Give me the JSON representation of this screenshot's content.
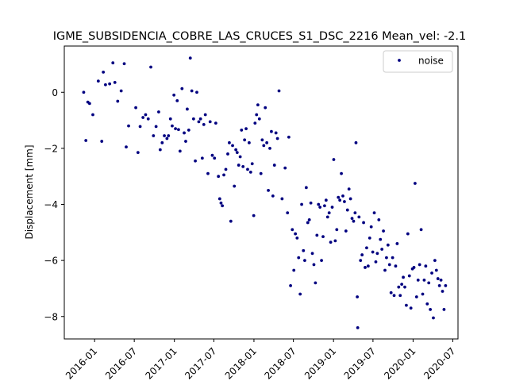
{
  "chart_data": {
    "type": "scatter",
    "title": "IGME_SUBSIDENCIA_COBRE_LAS_CRUCES_S1_DSC_2216     Mean_vel: -2.1",
    "xlabel": "",
    "ylabel": "Displacement [mm]",
    "xlim": [
      "2015-08-15",
      "2020-07-25"
    ],
    "ylim": [
      -8.8,
      1.65
    ],
    "x_ticks": [
      "2016-01",
      "2016-07",
      "2017-01",
      "2017-07",
      "2018-01",
      "2018-07",
      "2019-01",
      "2019-07",
      "2020-01",
      "2020-07"
    ],
    "y_ticks": [
      0,
      -2,
      -4,
      -6,
      -8
    ],
    "y_tick_labels": [
      "0",
      "−2",
      "−4",
      "−6",
      "−8"
    ],
    "legend": {
      "placement": "top-right",
      "entries": [
        "noise"
      ]
    },
    "grid": false,
    "marker_color": "#000080",
    "series": [
      {
        "name": "noise",
        "points": [
          [
            "2015-11-12",
            0.0
          ],
          [
            "2015-11-22",
            -1.72
          ],
          [
            "2015-12-01",
            -0.35
          ],
          [
            "2015-12-09",
            -0.4
          ],
          [
            "2015-12-24",
            -0.8
          ],
          [
            "2016-01-18",
            0.4
          ],
          [
            "2016-02-03",
            -1.75
          ],
          [
            "2016-02-10",
            0.72
          ],
          [
            "2016-02-20",
            0.27
          ],
          [
            "2016-03-10",
            0.3
          ],
          [
            "2016-03-25",
            1.05
          ],
          [
            "2016-04-03",
            0.35
          ],
          [
            "2016-04-16",
            -0.32
          ],
          [
            "2016-05-02",
            0.05
          ],
          [
            "2016-05-16",
            1.02
          ],
          [
            "2016-05-25",
            -1.95
          ],
          [
            "2016-06-05",
            -1.2
          ],
          [
            "2016-07-08",
            -0.55
          ],
          [
            "2016-07-18",
            -2.15
          ],
          [
            "2016-07-28",
            -1.22
          ],
          [
            "2016-08-10",
            -0.9
          ],
          [
            "2016-08-22",
            -0.8
          ],
          [
            "2016-09-03",
            -0.95
          ],
          [
            "2016-09-15",
            0.9
          ],
          [
            "2016-09-27",
            -1.55
          ],
          [
            "2016-10-09",
            -1.22
          ],
          [
            "2016-10-21",
            -0.7
          ],
          [
            "2016-10-28",
            -2.05
          ],
          [
            "2016-11-06",
            -1.8
          ],
          [
            "2016-11-16",
            -1.55
          ],
          [
            "2016-11-28",
            -1.65
          ],
          [
            "2016-12-05",
            -1.55
          ],
          [
            "2016-12-14",
            -0.95
          ],
          [
            "2016-12-22",
            -1.2
          ],
          [
            "2016-12-30",
            -0.1
          ],
          [
            "2017-01-06",
            -1.3
          ],
          [
            "2017-01-14",
            -0.3
          ],
          [
            "2017-01-20",
            -1.33
          ],
          [
            "2017-01-27",
            -2.1
          ],
          [
            "2017-02-05",
            0.13
          ],
          [
            "2017-02-15",
            -1.45
          ],
          [
            "2017-02-22",
            -1.75
          ],
          [
            "2017-03-01",
            -0.6
          ],
          [
            "2017-03-08",
            -1.35
          ],
          [
            "2017-03-15",
            1.22
          ],
          [
            "2017-03-22",
            0.05
          ],
          [
            "2017-03-30",
            -0.95
          ],
          [
            "2017-04-07",
            -2.45
          ],
          [
            "2017-04-14",
            0.0
          ],
          [
            "2017-04-23",
            -1.05
          ],
          [
            "2017-05-01",
            -0.95
          ],
          [
            "2017-05-09",
            -2.35
          ],
          [
            "2017-05-16",
            -1.15
          ],
          [
            "2017-05-23",
            -0.8
          ],
          [
            "2017-06-04",
            -2.9
          ],
          [
            "2017-06-14",
            -1.05
          ],
          [
            "2017-06-24",
            -2.25
          ],
          [
            "2017-07-04",
            -2.35
          ],
          [
            "2017-07-10",
            -1.1
          ],
          [
            "2017-07-22",
            -3.0
          ],
          [
            "2017-07-28",
            -3.8
          ],
          [
            "2017-08-03",
            -3.95
          ],
          [
            "2017-08-09",
            -4.05
          ],
          [
            "2017-08-16",
            -2.95
          ],
          [
            "2017-08-25",
            -2.75
          ],
          [
            "2017-09-03",
            -2.2
          ],
          [
            "2017-09-10",
            -1.8
          ],
          [
            "2017-09-17",
            -4.6
          ],
          [
            "2017-09-25",
            -1.9
          ],
          [
            "2017-10-03",
            -3.35
          ],
          [
            "2017-10-10",
            -2.05
          ],
          [
            "2017-10-16",
            -2.15
          ],
          [
            "2017-10-23",
            -2.6
          ],
          [
            "2017-10-30",
            -2.3
          ],
          [
            "2017-11-05",
            -1.35
          ],
          [
            "2017-11-12",
            -2.65
          ],
          [
            "2017-11-19",
            -1.7
          ],
          [
            "2017-11-26",
            -1.3
          ],
          [
            "2017-12-03",
            -2.75
          ],
          [
            "2017-12-10",
            -1.8
          ],
          [
            "2017-12-17",
            -2.85
          ],
          [
            "2017-12-24",
            -2.55
          ],
          [
            "2017-12-31",
            -4.4
          ],
          [
            "2018-01-06",
            -1.1
          ],
          [
            "2018-01-13",
            -0.8
          ],
          [
            "2018-01-19",
            -0.45
          ],
          [
            "2018-01-26",
            -0.95
          ],
          [
            "2018-02-02",
            -2.9
          ],
          [
            "2018-02-08",
            -1.7
          ],
          [
            "2018-02-15",
            -1.9
          ],
          [
            "2018-02-22",
            -0.55
          ],
          [
            "2018-03-01",
            -1.8
          ],
          [
            "2018-03-08",
            -3.5
          ],
          [
            "2018-03-15",
            -2.0
          ],
          [
            "2018-03-22",
            -1.4
          ],
          [
            "2018-03-29",
            -3.7
          ],
          [
            "2018-04-05",
            -2.6
          ],
          [
            "2018-04-12",
            -1.45
          ],
          [
            "2018-04-19",
            -1.65
          ],
          [
            "2018-04-26",
            0.05
          ],
          [
            "2018-05-10",
            -3.8
          ],
          [
            "2018-05-24",
            -2.7
          ],
          [
            "2018-06-04",
            -4.3
          ],
          [
            "2018-06-10",
            -1.6
          ],
          [
            "2018-06-18",
            -6.9
          ],
          [
            "2018-06-26",
            -4.9
          ],
          [
            "2018-07-03",
            -6.35
          ],
          [
            "2018-07-10",
            -5.05
          ],
          [
            "2018-07-18",
            -5.2
          ],
          [
            "2018-07-25",
            -5.9
          ],
          [
            "2018-08-01",
            -7.2
          ],
          [
            "2018-08-08",
            -4.0
          ],
          [
            "2018-08-16",
            -5.65
          ],
          [
            "2018-08-22",
            -6.0
          ],
          [
            "2018-08-29",
            -3.4
          ],
          [
            "2018-09-05",
            -4.65
          ],
          [
            "2018-09-12",
            -4.55
          ],
          [
            "2018-09-19",
            -3.95
          ],
          [
            "2018-09-26",
            -5.75
          ],
          [
            "2018-10-03",
            -6.15
          ],
          [
            "2018-10-10",
            -6.8
          ],
          [
            "2018-10-17",
            -5.1
          ],
          [
            "2018-10-24",
            -4.0
          ],
          [
            "2018-10-31",
            -4.1
          ],
          [
            "2018-11-07",
            -6.0
          ],
          [
            "2018-11-14",
            -5.15
          ],
          [
            "2018-11-21",
            -4.05
          ],
          [
            "2018-11-28",
            -3.85
          ],
          [
            "2018-12-05",
            -4.45
          ],
          [
            "2018-12-12",
            -4.3
          ],
          [
            "2018-12-19",
            -5.35
          ],
          [
            "2018-12-26",
            -4.1
          ],
          [
            "2019-01-02",
            -2.4
          ],
          [
            "2019-01-09",
            -5.3
          ],
          [
            "2019-01-16",
            -4.9
          ],
          [
            "2019-01-23",
            -3.75
          ],
          [
            "2019-01-30",
            -3.85
          ],
          [
            "2019-02-06",
            -2.9
          ],
          [
            "2019-02-13",
            -3.7
          ],
          [
            "2019-02-20",
            -3.9
          ],
          [
            "2019-02-27",
            -4.95
          ],
          [
            "2019-03-06",
            -4.2
          ],
          [
            "2019-03-13",
            -3.45
          ],
          [
            "2019-03-20",
            -3.8
          ],
          [
            "2019-03-27",
            -4.5
          ],
          [
            "2019-04-03",
            -4.6
          ],
          [
            "2019-04-10",
            -4.3
          ],
          [
            "2019-04-14",
            -1.8
          ],
          [
            "2019-04-20",
            -7.3
          ],
          [
            "2019-04-22",
            -8.4
          ],
          [
            "2019-04-28",
            -4.45
          ],
          [
            "2019-05-05",
            -6.0
          ],
          [
            "2019-05-12",
            -5.8
          ],
          [
            "2019-05-19",
            -4.65
          ],
          [
            "2019-05-26",
            -6.25
          ],
          [
            "2019-06-02",
            -5.55
          ],
          [
            "2019-06-09",
            -6.2
          ],
          [
            "2019-06-16",
            -5.2
          ],
          [
            "2019-06-23",
            -4.8
          ],
          [
            "2019-06-30",
            -5.7
          ],
          [
            "2019-07-07",
            -4.3
          ],
          [
            "2019-07-14",
            -6.05
          ],
          [
            "2019-07-21",
            -5.75
          ],
          [
            "2019-07-28",
            -4.55
          ],
          [
            "2019-08-04",
            -5.25
          ],
          [
            "2019-08-11",
            -5.6
          ],
          [
            "2019-08-18",
            -4.95
          ],
          [
            "2019-08-25",
            -6.35
          ],
          [
            "2019-09-01",
            -5.9
          ],
          [
            "2019-09-08",
            -5.45
          ],
          [
            "2019-09-15",
            -6.15
          ],
          [
            "2019-09-22",
            -7.15
          ],
          [
            "2019-09-29",
            -5.9
          ],
          [
            "2019-10-06",
            -7.25
          ],
          [
            "2019-10-13",
            -6.2
          ],
          [
            "2019-10-20",
            -5.4
          ],
          [
            "2019-10-27",
            -6.95
          ],
          [
            "2019-11-03",
            -7.25
          ],
          [
            "2019-11-10",
            -6.85
          ],
          [
            "2019-11-17",
            -6.6
          ],
          [
            "2019-11-24",
            -6.95
          ],
          [
            "2019-12-01",
            -7.6
          ],
          [
            "2019-12-08",
            -5.05
          ],
          [
            "2019-12-15",
            -6.55
          ],
          [
            "2019-12-22",
            -7.7
          ],
          [
            "2019-12-29",
            -6.3
          ],
          [
            "2020-01-05",
            -6.25
          ],
          [
            "2020-01-10",
            -3.25
          ],
          [
            "2020-01-17",
            -7.3
          ],
          [
            "2020-01-24",
            -6.7
          ],
          [
            "2020-01-31",
            -6.15
          ],
          [
            "2020-02-07",
            -4.9
          ],
          [
            "2020-02-14",
            -7.2
          ],
          [
            "2020-02-21",
            -6.7
          ],
          [
            "2020-02-28",
            -6.2
          ],
          [
            "2020-03-06",
            -7.55
          ],
          [
            "2020-03-13",
            -6.8
          ],
          [
            "2020-03-20",
            -7.75
          ],
          [
            "2020-03-27",
            -6.45
          ],
          [
            "2020-04-03",
            -8.05
          ],
          [
            "2020-04-10",
            -6.0
          ],
          [
            "2020-04-17",
            -6.35
          ],
          [
            "2020-04-24",
            -6.65
          ],
          [
            "2020-05-01",
            -6.9
          ],
          [
            "2020-05-08",
            -6.7
          ],
          [
            "2020-05-15",
            -7.1
          ],
          [
            "2020-05-22",
            -7.75
          ],
          [
            "2020-05-29",
            -6.9
          ]
        ]
      }
    ]
  }
}
